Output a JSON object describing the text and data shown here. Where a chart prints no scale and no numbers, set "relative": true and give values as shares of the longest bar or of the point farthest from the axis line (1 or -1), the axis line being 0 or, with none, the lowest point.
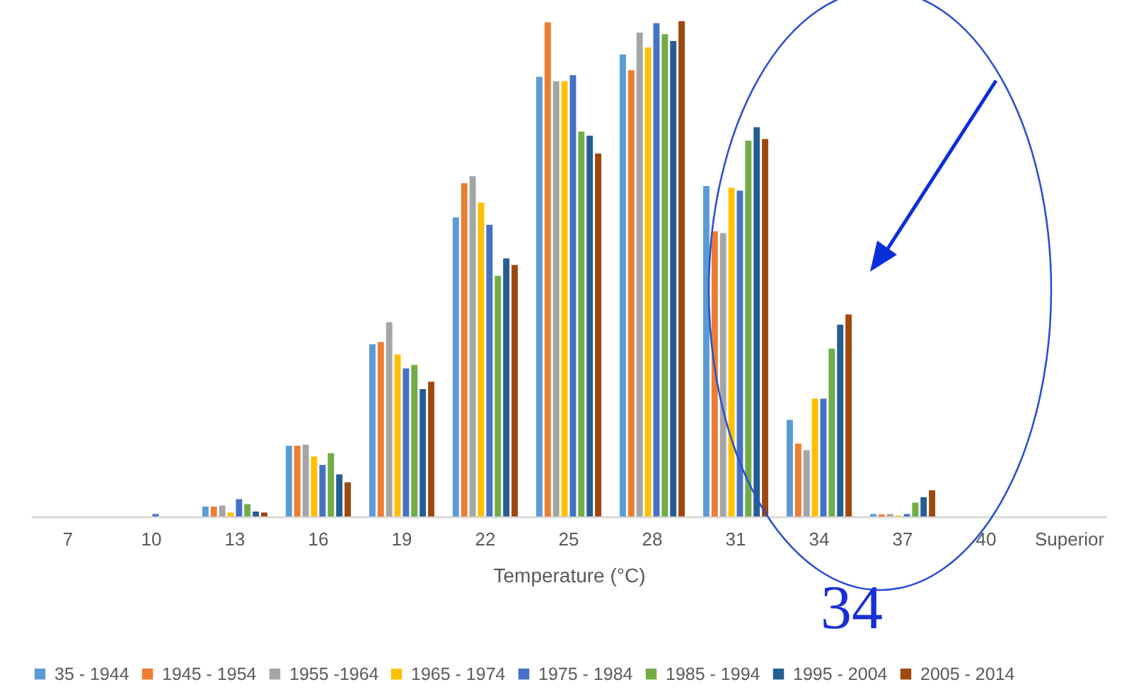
{
  "chart_data": {
    "type": "bar",
    "relative": true,
    "xlabel": "Temperature (°C)",
    "legend": "bottom",
    "annotations": [
      "34"
    ],
    "categories": [
      "7",
      "10",
      "13",
      "16",
      "19",
      "22",
      "25",
      "28",
      "31",
      "34",
      "37",
      "40",
      "Superior"
    ],
    "series": [
      {
        "name": "35 - 1944",
        "color": "#5b9bd5",
        "values": [
          0,
          0,
          0.02,
          0.143,
          0.348,
          0.604,
          0.888,
          0.933,
          0.667,
          0.195,
          0.005,
          0,
          0
        ]
      },
      {
        "name": "1945 - 1954",
        "color": "#ed7d31",
        "values": [
          0,
          0,
          0.02,
          0.143,
          0.352,
          0.673,
          0.998,
          0.901,
          0.576,
          0.147,
          0.004,
          0,
          0
        ]
      },
      {
        "name": "1955 -1964",
        "color": "#a5a5a5",
        "values": [
          0,
          0,
          0.022,
          0.145,
          0.392,
          0.687,
          0.879,
          0.977,
          0.572,
          0.134,
          0.005,
          0,
          0
        ]
      },
      {
        "name": "1965 - 1974",
        "color": "#ffc000",
        "values": [
          0,
          0,
          0.008,
          0.121,
          0.327,
          0.634,
          0.879,
          0.947,
          0.664,
          0.238,
          0.002,
          0,
          0
        ]
      },
      {
        "name": "1975 - 1984",
        "color": "#4472c4",
        "values": [
          0,
          0.005,
          0.035,
          0.104,
          0.299,
          0.589,
          0.891,
          0.996,
          0.658,
          0.238,
          0.005,
          0,
          0
        ]
      },
      {
        "name": "1985 - 1994",
        "color": "#70ad47",
        "values": [
          0,
          0,
          0.025,
          0.128,
          0.306,
          0.486,
          0.777,
          0.974,
          0.759,
          0.339,
          0.028,
          0,
          0
        ]
      },
      {
        "name": "1995 - 2004",
        "color": "#255e91",
        "values": [
          0,
          0,
          0.01,
          0.085,
          0.257,
          0.521,
          0.769,
          0.96,
          0.786,
          0.387,
          0.039,
          0,
          0
        ]
      },
      {
        "name": "2005 - 2014",
        "color": "#9e480e",
        "values": [
          0,
          0,
          0.008,
          0.069,
          0.272,
          0.508,
          0.733,
          1,
          0.762,
          0.408,
          0.053,
          0,
          0
        ]
      }
    ]
  }
}
